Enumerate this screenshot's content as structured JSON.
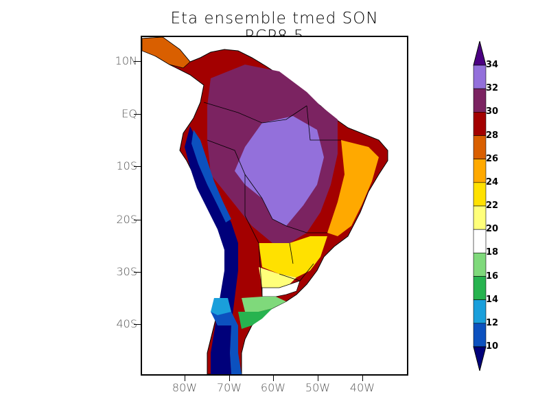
{
  "title": "Eta ensemble tmed SON RCP8.5",
  "lat_labels": [
    "10N",
    "EQ",
    "10S",
    "20S",
    "30S",
    "40S"
  ],
  "lon_labels": [
    "80W",
    "70W",
    "60W",
    "50W",
    "40W"
  ],
  "legend": {
    "levels": [
      "10",
      "12",
      "14",
      "16",
      "18",
      "20",
      "22",
      "24",
      "26",
      "28",
      "30",
      "32",
      "34"
    ],
    "colors": [
      "#0c51bf",
      "#1a9fdb",
      "#27b34f",
      "#7fd97b",
      "#ffffff",
      "#ffff7a",
      "#ffe100",
      "#ffa900",
      "#d95f00",
      "#a30000",
      "#7b2361",
      "#9370db"
    ],
    "under_color": "#00007a",
    "over_color": "#4b0082"
  }
}
